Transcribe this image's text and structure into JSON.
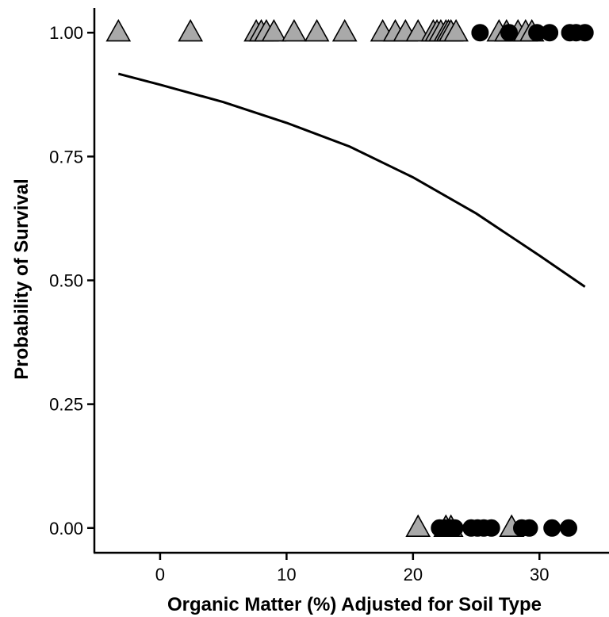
{
  "chart_data": {
    "type": "scatter",
    "title": "",
    "xlabel": "Organic Matter (%) Adjusted for Soil Type",
    "ylabel": "Probability of Survival",
    "xlim": [
      -5.2,
      35.5
    ],
    "ylim": [
      -0.05,
      1.05
    ],
    "xticks": [
      0,
      10,
      20,
      30
    ],
    "xtick_labels": [
      "0",
      "10",
      "20",
      "30"
    ],
    "yticks": [
      0.0,
      0.25,
      0.5,
      0.75,
      1.0
    ],
    "ytick_labels": [
      "0.00",
      "0.25",
      "0.50",
      "0.75",
      "1.00"
    ],
    "grid": false,
    "legend": "none",
    "colors": {
      "triangle_fill": "#a9a9a9",
      "circle_fill": "#000000",
      "line": "#000000"
    },
    "series": [
      {
        "marker": "triangle",
        "x": [
          -3.3,
          2.4,
          7.6,
          8.0,
          8.4,
          9.0,
          10.6,
          12.4,
          14.6,
          17.6,
          18.6,
          19.4,
          20.4,
          21.6,
          21.9,
          22.2,
          22.6,
          22.8,
          23.0,
          23.4,
          26.8,
          27.4,
          28.3,
          28.9,
          29.4,
          20.4,
          22.6,
          23.0,
          27.8
        ],
        "y": [
          1,
          1,
          1,
          1,
          1,
          1,
          1,
          1,
          1,
          1,
          1,
          1,
          1,
          1,
          1,
          1,
          1,
          1,
          1,
          1,
          1,
          1,
          1,
          1,
          1,
          0,
          0,
          0,
          0
        ]
      },
      {
        "marker": "circle",
        "x": [
          25.3,
          27.6,
          29.8,
          30.8,
          32.4,
          32.9,
          33.6,
          22.1,
          22.5,
          22.9,
          23.3,
          24.6,
          25.1,
          25.6,
          26.2,
          28.6,
          29.2,
          31.0,
          32.3
        ],
        "y": [
          1,
          1,
          1,
          1,
          1,
          1,
          1,
          0,
          0,
          0,
          0,
          0,
          0,
          0,
          0,
          0,
          0,
          0,
          0
        ]
      },
      {
        "type": "line",
        "x": [
          -3.3,
          0,
          5,
          10,
          15,
          20,
          25,
          30,
          33.6
        ],
        "y": [
          0.917,
          0.895,
          0.86,
          0.818,
          0.77,
          0.708,
          0.635,
          0.55,
          0.487
        ]
      }
    ]
  }
}
